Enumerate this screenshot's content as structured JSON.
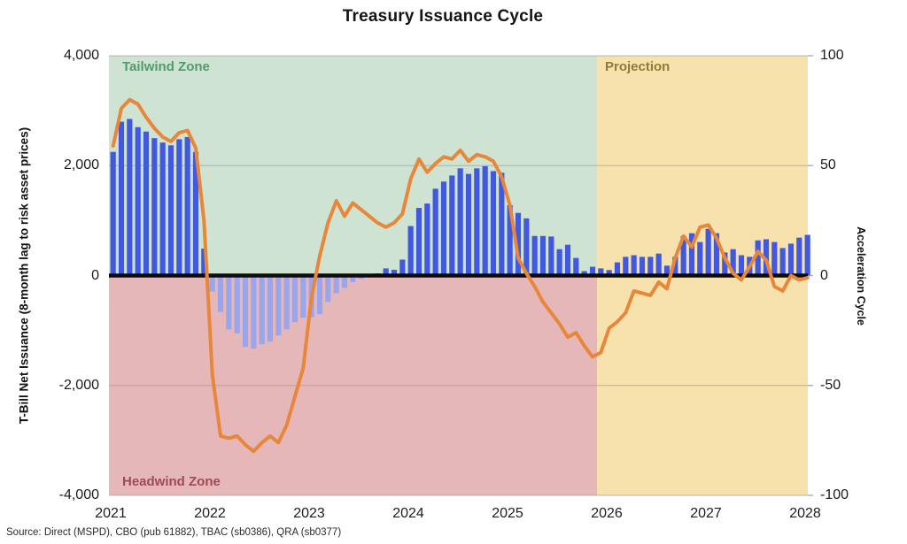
{
  "chart": {
    "title": "Treasury Issuance Cycle",
    "source": "Source: Direct (MSPD), CBO (pub 61882), TBAC (sb0386), QRA (sb0377)",
    "left_axis": {
      "title": "T-Bill Net Issuance (8-month lag to risk asset prices)",
      "ticks": [
        {
          "label": "4,000",
          "value": 4000
        },
        {
          "label": "2,000",
          "value": 2000
        },
        {
          "label": "0",
          "value": 0
        },
        {
          "label": "-2,000",
          "value": -2000
        },
        {
          "label": "-4,000",
          "value": -4000
        }
      ]
    },
    "right_axis": {
      "title": "Acceleration Cycle",
      "ticks": [
        {
          "label": "100",
          "value": 100
        },
        {
          "label": "50",
          "value": 50
        },
        {
          "label": "0",
          "value": 0
        },
        {
          "label": "-50",
          "value": -50
        },
        {
          "label": "-100",
          "value": -100
        }
      ]
    },
    "x_axis": {
      "ticks": [
        "2021",
        "2022",
        "2023",
        "2024",
        "2025",
        "2026",
        "2027",
        "2028"
      ]
    },
    "zones": {
      "tailwind": {
        "label": "Tailwind Zone",
        "text_color": "#4f9c68",
        "bg": "#cfe3d3"
      },
      "headwind": {
        "label": "Headwind Zone",
        "text_color": "#9e4a55",
        "bg": "#e6b7b8"
      },
      "projection": {
        "label": "Projection",
        "text_color": "#8b7c36",
        "bg": "#f7e2ae"
      }
    },
    "colors": {
      "bar_positive": "#4059e0",
      "bar_negative": "#9aa6ec",
      "line": "#e8873a",
      "zero_line": "#0b0b0b",
      "grid": "#8f9499"
    }
  },
  "chart_data": {
    "type": "combo",
    "frequency": "monthly",
    "x_start": "2021-01",
    "x_tick_years": [
      2021,
      2022,
      2023,
      2024,
      2025,
      2026,
      2027,
      2028
    ],
    "left_axis_range": [
      -4000,
      4000
    ],
    "right_axis_range": [
      -100,
      100
    ],
    "projection_start": 2025.92,
    "series": [
      {
        "name": "T-Bill Net Issuance",
        "type": "bar",
        "axis": "left",
        "values": [
          2250,
          2800,
          2850,
          2700,
          2620,
          2500,
          2420,
          2370,
          2480,
          2520,
          2250,
          490,
          -290,
          -660,
          -980,
          -1050,
          -1300,
          -1330,
          -1250,
          -1200,
          -1090,
          -980,
          -850,
          -770,
          -760,
          -700,
          -480,
          -320,
          -225,
          -120,
          -60,
          -30,
          40,
          130,
          105,
          290,
          900,
          1230,
          1310,
          1580,
          1710,
          1820,
          1950,
          1850,
          1950,
          1990,
          1900,
          1870,
          1280,
          1140,
          1040,
          720,
          720,
          710,
          480,
          560,
          320,
          80,
          160,
          130,
          100,
          240,
          340,
          370,
          340,
          340,
          400,
          180,
          340,
          720,
          770,
          610,
          850,
          770,
          420,
          480,
          370,
          340,
          640,
          660,
          610,
          500,
          580,
          690,
          740
        ]
      },
      {
        "name": "Acceleration Cycle",
        "type": "line",
        "axis": "right",
        "values": [
          59,
          76,
          80,
          78,
          72,
          67,
          63,
          61,
          65,
          66,
          58,
          25,
          -45,
          -73,
          -74,
          -73,
          -77,
          -80,
          -76,
          -73,
          -76,
          -68,
          -55,
          -42,
          -10,
          9,
          24,
          34,
          27,
          33,
          30,
          27,
          24,
          22,
          24,
          28,
          44,
          53,
          47,
          51,
          54,
          53,
          57,
          52,
          55,
          54,
          52,
          45,
          32,
          8,
          1,
          -5,
          -12,
          -17,
          -22,
          -28,
          -26,
          -32,
          -37,
          -35,
          -24,
          -21,
          -17,
          -7,
          -8,
          -9,
          -3,
          -6,
          8,
          18,
          13,
          22,
          23,
          17,
          8,
          1,
          -2,
          4,
          11,
          7,
          -5,
          -7,
          0,
          -2,
          -1
        ]
      }
    ]
  }
}
